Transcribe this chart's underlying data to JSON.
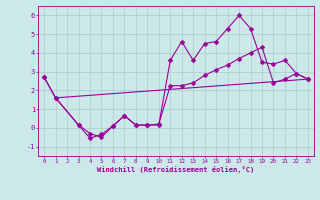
{
  "background_color": "#cce8e8",
  "grid_color": "#aacccc",
  "line_color": "#990099",
  "marker_color": "#990099",
  "xlabel": "Windchill (Refroidissement éolien,°C)",
  "xlim": [
    -0.5,
    23.5
  ],
  "ylim": [
    -1.5,
    6.5
  ],
  "yticks": [
    -1,
    0,
    1,
    2,
    3,
    4,
    5,
    6
  ],
  "xticks": [
    0,
    1,
    2,
    3,
    4,
    5,
    6,
    7,
    8,
    9,
    10,
    11,
    12,
    13,
    14,
    15,
    16,
    17,
    18,
    19,
    20,
    21,
    22,
    23
  ],
  "series1_x": [
    0,
    1,
    3,
    4,
    5,
    6,
    7,
    8,
    9,
    10,
    11,
    12,
    13,
    14,
    15,
    16,
    17,
    18,
    19,
    20,
    21,
    22,
    23
  ],
  "series1_y": [
    2.7,
    1.6,
    0.15,
    -0.3,
    -0.5,
    0.1,
    0.65,
    0.15,
    0.15,
    0.15,
    3.6,
    4.6,
    3.6,
    4.5,
    4.6,
    5.3,
    6.0,
    5.3,
    3.5,
    3.4,
    3.6,
    2.9,
    2.6
  ],
  "series2_x": [
    1,
    23
  ],
  "series2_y": [
    1.6,
    2.6
  ],
  "series3_x": [
    0,
    1,
    3,
    4,
    5,
    6,
    7,
    8,
    9,
    10,
    11,
    12,
    13,
    14,
    15,
    16,
    17,
    18,
    19,
    20,
    21,
    22,
    23
  ],
  "series3_y": [
    2.7,
    1.6,
    0.15,
    -0.55,
    -0.35,
    0.1,
    0.65,
    0.15,
    0.15,
    0.2,
    2.25,
    2.25,
    2.4,
    2.8,
    3.1,
    3.35,
    3.7,
    4.0,
    4.3,
    2.4,
    2.6,
    2.9,
    2.6
  ]
}
